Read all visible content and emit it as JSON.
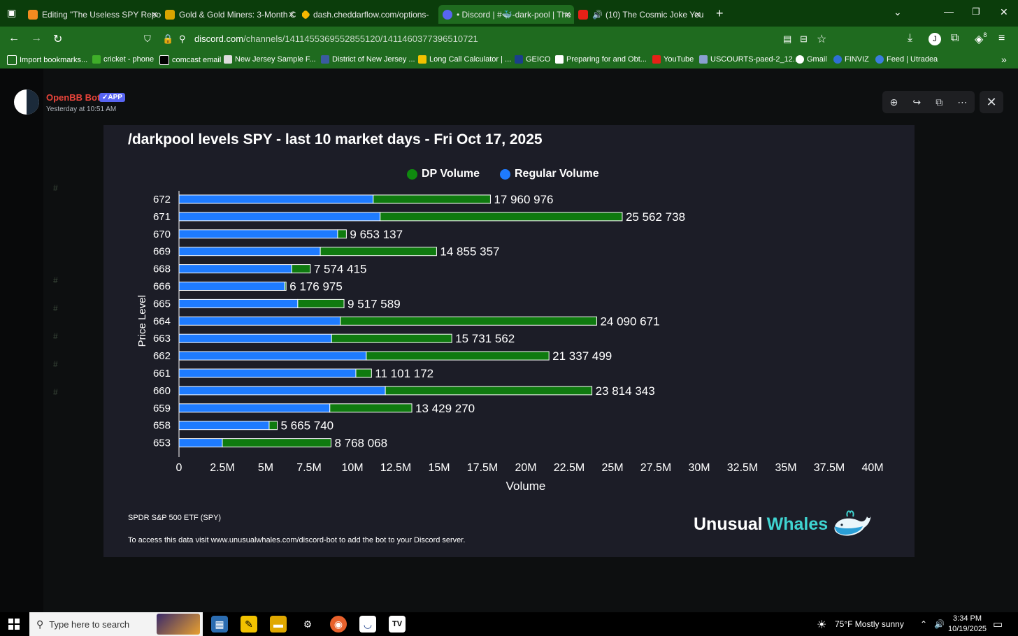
{
  "browser": {
    "tabs": [
      {
        "title": "Editing \"The Useless SPY Report",
        "active": false
      },
      {
        "title": "Gold & Gold Miners: 3-Month C",
        "active": false
      },
      {
        "title": "dash.cheddarflow.com/options-",
        "active": false
      },
      {
        "title": "• Discord | #🐳-dark-pool | The",
        "active": true
      },
      {
        "title": "(10) The Cosmic Joke You S",
        "active": false
      }
    ],
    "url_host": "discord.com",
    "url_path": "/channels/1411455369552855120/1411460377396510721",
    "extensions_badge": "8",
    "bookmarks": [
      "Import bookmarks...",
      "cricket - phone",
      "comcast email",
      "New Jersey Sample F...",
      "District of New Jersey ...",
      "Long Call Calculator | ...",
      "GEICO",
      "Preparing for and Obt...",
      "YouTube",
      "USCOURTS-paed-2_12...",
      "Gmail",
      "FINVIZ",
      "Feed | Utradea"
    ]
  },
  "message": {
    "author": "OpenBB Bot",
    "badge": "✓APP",
    "timestamp": "Yesterday at 10:51 AM"
  },
  "card": {
    "title": "/darkpool levels SPY - last 10 market days - Fri Oct 17, 2025",
    "subtitle": "SPDR S&P 500 ETF (SPY)",
    "note": "To access this data visit www.unusualwhales.com/discord-bot to add the bot to your Discord server.",
    "logo_word1": "Unusual",
    "logo_word2": "Whales"
  },
  "chart_data": {
    "type": "bar",
    "orientation": "horizontal",
    "stacked": true,
    "xlabel": "Volume",
    "ylabel": "Price Level",
    "xlim": [
      0,
      40000000
    ],
    "xticks": [
      "0",
      "2.5M",
      "5M",
      "7.5M",
      "10M",
      "12.5M",
      "15M",
      "17.5M",
      "20M",
      "22.5M",
      "25M",
      "27.5M",
      "30M",
      "32.5M",
      "35M",
      "37.5M",
      "40M"
    ],
    "categories": [
      "672",
      "671",
      "670",
      "669",
      "668",
      "666",
      "665",
      "664",
      "663",
      "662",
      "661",
      "660",
      "659",
      "658",
      "653"
    ],
    "series": [
      {
        "name": "Regular Volume",
        "color": "#1e7bff",
        "values": [
          11200000,
          11600000,
          9150000,
          8150000,
          6500000,
          6100000,
          6850000,
          9300000,
          8800000,
          10800000,
          10200000,
          11900000,
          8700000,
          5200000,
          2500000
        ]
      },
      {
        "name": "DP Volume",
        "color": "#0f7a0f",
        "values": [
          6760976,
          13962738,
          503137,
          6705357,
          1074415,
          76975,
          2667589,
          14790671,
          6931562,
          10537499,
          901172,
          11914343,
          4729270,
          465740,
          6268068
        ]
      }
    ],
    "totals": [
      "17 960 976",
      "25 562 738",
      "9 653 137",
      "14 855 357",
      "7 574 415",
      "6 176 975",
      "9 517 589",
      "24 090 671",
      "15 731 562",
      "21 337 499",
      "11 101 172",
      "23 814 343",
      "13 429 270",
      "5 665 740",
      "8 768 068"
    ],
    "legend_position": "top-center",
    "grid": false
  },
  "taskbar": {
    "search_placeholder": "Type here to search",
    "weather": "75°F  Mostly sunny",
    "time": "3:34 PM",
    "date": "10/19/2025"
  }
}
